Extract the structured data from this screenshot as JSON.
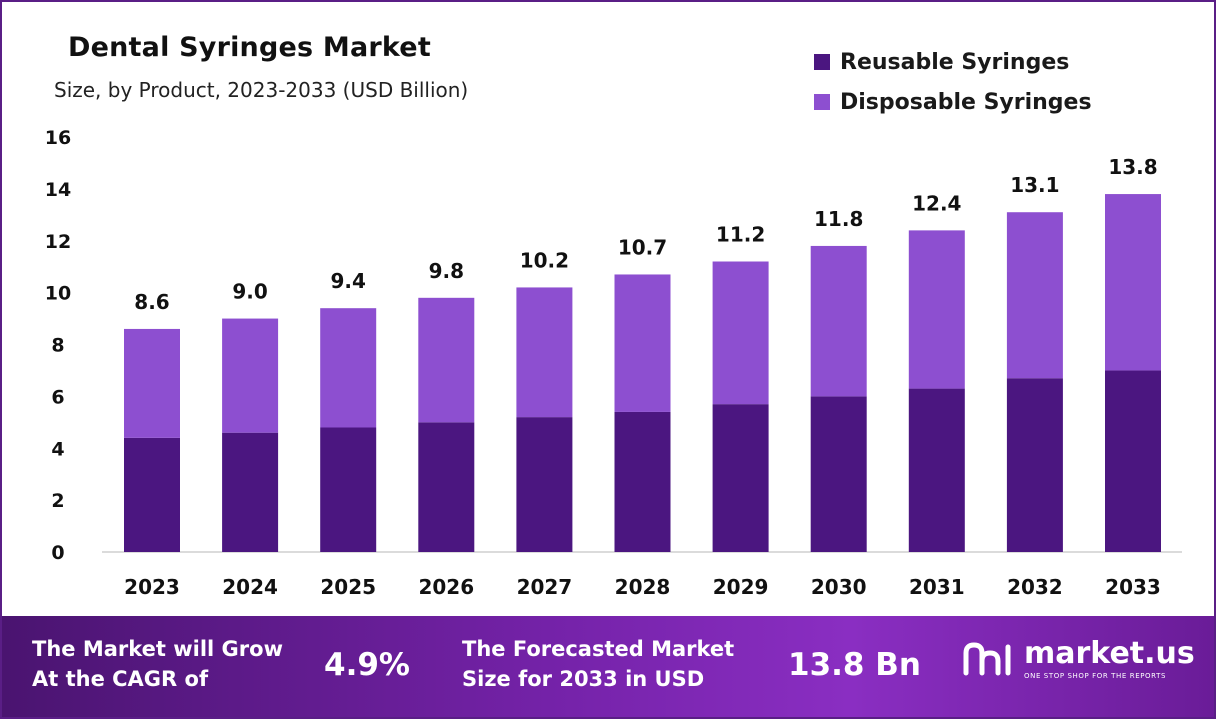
{
  "chart_data": {
    "type": "bar",
    "stacked": true,
    "title": "Dental Syringes Market",
    "subtitle": "Size, by Product, 2023-2033 (USD Billion)",
    "categories": [
      "2023",
      "2024",
      "2025",
      "2026",
      "2027",
      "2028",
      "2029",
      "2030",
      "2031",
      "2032",
      "2033"
    ],
    "totals": [
      "8.6",
      "9.0",
      "9.4",
      "9.8",
      "10.2",
      "10.7",
      "11.2",
      "11.8",
      "12.4",
      "13.1",
      "13.8"
    ],
    "series": [
      {
        "name": "Reusable Syringes",
        "color": "#4b1680",
        "values": [
          4.4,
          4.6,
          4.8,
          5.0,
          5.2,
          5.4,
          5.7,
          6.0,
          6.3,
          6.7,
          7.0
        ]
      },
      {
        "name": "Disposable Syringes",
        "color": "#8d4fd0",
        "values": [
          4.2,
          4.4,
          4.6,
          4.8,
          5.0,
          5.3,
          5.5,
          5.8,
          6.1,
          6.4,
          6.8
        ]
      }
    ],
    "y_ticks": [
      "0",
      "2",
      "4",
      "6",
      "8",
      "10",
      "12",
      "14",
      "16"
    ],
    "ylim": [
      0,
      16
    ],
    "grid": false,
    "legend": "top-right"
  },
  "banner": {
    "cagr_label_line1": "The Market will Grow",
    "cagr_label_line2": "At the CAGR of",
    "cagr_value": "4.9%",
    "forecast_label_line1": "The Forecasted Market",
    "forecast_label_line2": "Size for 2033 in USD",
    "forecast_value": "13.8 Bn",
    "brand_name": "market.us",
    "brand_tagline": "ONE STOP SHOP FOR THE REPORTS"
  }
}
